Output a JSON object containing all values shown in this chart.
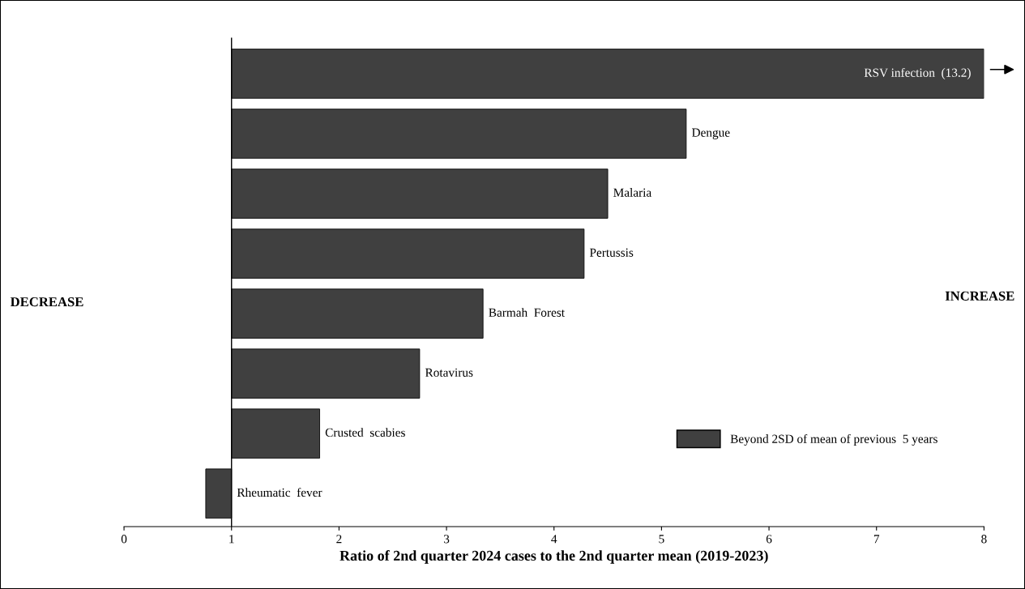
{
  "chart_data": {
    "type": "bar",
    "orientation": "horizontal",
    "categories": [
      "RSV infection  (13.2)",
      "Dengue",
      "Malaria",
      "Pertussis",
      "Barmah  Forest",
      "Rotavirus",
      "Crusted  scabies",
      "Rheumatic  fever"
    ],
    "series": [
      {
        "name": "Beyond 2SD of mean of previous  5 years",
        "color": "#404040",
        "base": [
          1,
          1,
          1,
          1,
          1,
          1,
          1,
          1
        ],
        "values": [
          7,
          4.23,
          3.5,
          3.28,
          2.34,
          1.75,
          0.82,
          -0.24
        ]
      }
    ],
    "xlim": [
      0,
      8
    ],
    "xticks": [
      0,
      1,
      2,
      3,
      4,
      5,
      6,
      7,
      8
    ],
    "xlabel": "Ratio of 2nd quarter 2024 cases to the 2nd quarter mean (2019-2023)",
    "ref_lines": [
      {
        "axis": "x",
        "value": 1,
        "color": "#000000"
      }
    ],
    "annotations": [
      "DECREASE",
      "INCREASE"
    ],
    "legend": "right",
    "tick_labels": "x"
  }
}
